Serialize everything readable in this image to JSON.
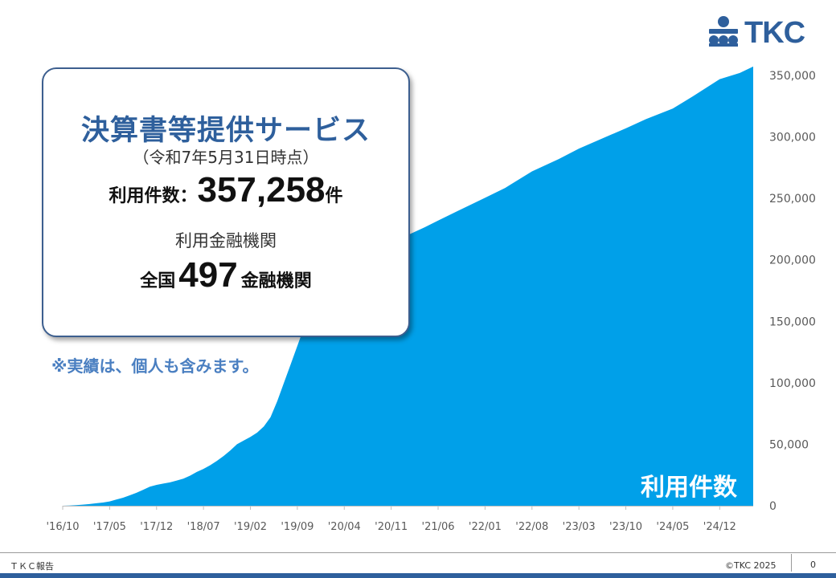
{
  "chart_data": {
    "type": "area",
    "series": [
      {
        "name": "利用件数",
        "color": "#00a0e9",
        "points": [
          [
            "2016-10",
            0
          ],
          [
            "2016-11",
            200
          ],
          [
            "2016-12",
            500
          ],
          [
            "2017-01",
            900
          ],
          [
            "2017-02",
            1400
          ],
          [
            "2017-03",
            2000
          ],
          [
            "2017-04",
            2600
          ],
          [
            "2017-05",
            3500
          ],
          [
            "2017-06",
            5000
          ],
          [
            "2017-07",
            6500
          ],
          [
            "2017-08",
            8500
          ],
          [
            "2017-09",
            10500
          ],
          [
            "2017-10",
            13000
          ],
          [
            "2017-11",
            15500
          ],
          [
            "2017-12",
            17000
          ],
          [
            "2018-01",
            18000
          ],
          [
            "2018-02",
            19000
          ],
          [
            "2018-03",
            20500
          ],
          [
            "2018-04",
            22000
          ],
          [
            "2018-05",
            24500
          ],
          [
            "2018-06",
            27500
          ],
          [
            "2018-07",
            30000
          ],
          [
            "2018-08",
            33000
          ],
          [
            "2018-09",
            36500
          ],
          [
            "2018-10",
            40500
          ],
          [
            "2018-11",
            45000
          ],
          [
            "2018-12",
            50000
          ],
          [
            "2019-01",
            53000
          ],
          [
            "2019-02",
            56000
          ],
          [
            "2019-03",
            59500
          ],
          [
            "2019-04",
            64500
          ],
          [
            "2019-05",
            72000
          ],
          [
            "2019-06",
            85000
          ],
          [
            "2019-07",
            100000
          ],
          [
            "2019-08",
            115000
          ],
          [
            "2019-09",
            130000
          ],
          [
            "2019-10",
            145000
          ],
          [
            "2019-11",
            155000
          ],
          [
            "2019-12",
            163000
          ],
          [
            "2020-01",
            170000
          ],
          [
            "2020-02",
            176000
          ],
          [
            "2020-03",
            182000
          ],
          [
            "2020-04",
            188000
          ],
          [
            "2020-05",
            193000
          ],
          [
            "2020-06",
            198000
          ],
          [
            "2020-07",
            202000
          ],
          [
            "2020-08",
            205500
          ],
          [
            "2020-09",
            208500
          ],
          [
            "2020-10",
            211500
          ],
          [
            "2020-11",
            214000
          ],
          [
            "2021-01",
            219000
          ],
          [
            "2021-04",
            226500
          ],
          [
            "2021-06",
            232000
          ],
          [
            "2021-09",
            240000
          ],
          [
            "2022-01",
            250500
          ],
          [
            "2022-04",
            258500
          ],
          [
            "2022-08",
            272000
          ],
          [
            "2022-12",
            282000
          ],
          [
            "2023-03",
            290500
          ],
          [
            "2023-07",
            300000
          ],
          [
            "2023-10",
            307000
          ],
          [
            "2024-01",
            314500
          ],
          [
            "2024-05",
            323000
          ],
          [
            "2024-08",
            333000
          ],
          [
            "2024-12",
            347000
          ],
          [
            "2025-03",
            352000
          ],
          [
            "2025-05",
            357258
          ]
        ]
      }
    ],
    "x_ticks": [
      "'16/10",
      "'17/05",
      "'17/12",
      "'18/07",
      "'19/02",
      "'19/09",
      "'20/04",
      "'20/11",
      "'21/06",
      "'22/01",
      "'22/08",
      "'23/03",
      "'23/10",
      "'24/05",
      "'24/12"
    ],
    "y_ticks": [
      "0",
      "50,000",
      "100,000",
      "150,000",
      "200,000",
      "250,000",
      "300,000",
      "350,000"
    ],
    "ylim": [
      0,
      350000
    ],
    "x_range": [
      "2016-10",
      "2025-05"
    ],
    "y_axis_side": "right",
    "grid": false
  },
  "card": {
    "title": "決算書等提供サービス",
    "subtitle": "（令和7年5月31日時点）",
    "count_label": "利用件数：",
    "count_value": "357,258",
    "count_unit": "件",
    "inst_label": "利用金融機関",
    "inst_prefix": "全国",
    "inst_value": "497",
    "inst_unit": "金融機関"
  },
  "note": "※実績は、個人も含みます。",
  "series_label": "利用件数",
  "logo_text": "TKC",
  "footer": {
    "left": "ＴＫＣ報告",
    "copyright": "©TKC 2025",
    "page": "0"
  },
  "colors": {
    "area": "#00a0e9",
    "brand": "#2e5f9c",
    "note": "#4a7fc1"
  }
}
